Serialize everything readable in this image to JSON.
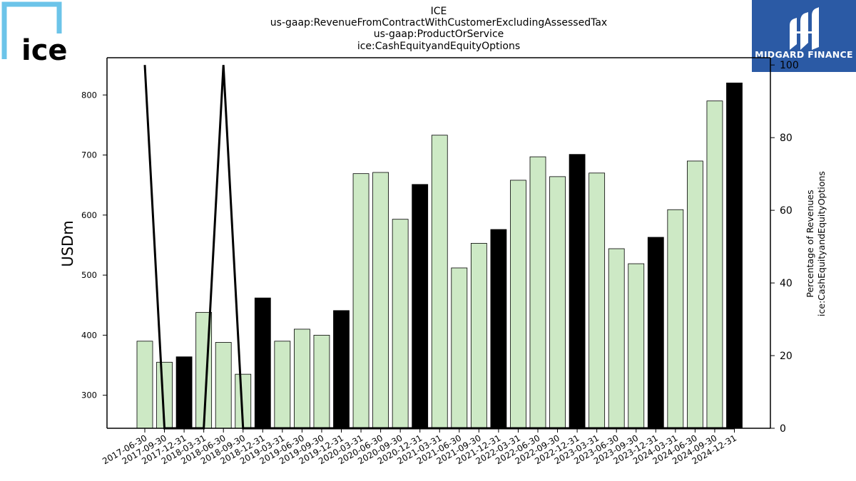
{
  "logo_left": {
    "text": "ice",
    "frame_color": "#6cc4e9"
  },
  "logo_right": {
    "text": "MIDGARD FINANCE",
    "bg_color": "#2b5aa5"
  },
  "chart_data": {
    "type": "bar",
    "title_lines": [
      "ICE",
      "us-gaap:RevenueFromContractWithCustomerExcludingAssessedTax",
      "us-gaap:ProductOrService",
      "ice:CashEquityandEquityOptions"
    ],
    "ylabel": "USDm",
    "y2label_lines": [
      "Percentage of Revenues",
      "ice:CashEquityandEquityOptions"
    ],
    "ylim": [
      245,
      862
    ],
    "yticks": [
      300,
      400,
      500,
      600,
      700,
      800
    ],
    "y2lim": [
      0,
      102
    ],
    "y2ticks": [
      0,
      20,
      40,
      60,
      80,
      100
    ],
    "categories": [
      "2017-06-30",
      "2017-09-30",
      "2017-12-31",
      "2018-03-31",
      "2018-06-30",
      "2018-09-30",
      "2018-12-31",
      "2019-03-31",
      "2019-06-30",
      "2019-09-30",
      "2019-12-31",
      "2020-03-31",
      "2020-06-30",
      "2020-09-30",
      "2020-12-31",
      "2021-03-31",
      "2021-06-30",
      "2021-09-30",
      "2021-12-31",
      "2022-03-31",
      "2022-06-30",
      "2022-09-30",
      "2022-12-31",
      "2023-03-31",
      "2023-06-30",
      "2023-09-30",
      "2023-12-31",
      "2024-03-31",
      "2024-06-30",
      "2024-09-30",
      "2024-12-31"
    ],
    "values": [
      390,
      355,
      364,
      438,
      388,
      335,
      462,
      390,
      410,
      400,
      441,
      669,
      671,
      593,
      651,
      733,
      512,
      553,
      576,
      658,
      697,
      664,
      701,
      670,
      544,
      519,
      563,
      609,
      690,
      790,
      820
    ],
    "year_end_flags": [
      false,
      false,
      true,
      false,
      false,
      false,
      true,
      false,
      false,
      false,
      true,
      false,
      false,
      false,
      true,
      false,
      false,
      false,
      true,
      false,
      false,
      false,
      true,
      false,
      false,
      false,
      true,
      false,
      false,
      false,
      true
    ],
    "colors": {
      "bar": "#cde9c5",
      "year_end_bar": "#000000",
      "line": "#000000"
    },
    "line_series": {
      "name": "Percentage of Revenues",
      "values": [
        100,
        0,
        0,
        0,
        100,
        0,
        0,
        0,
        0,
        0,
        0,
        0,
        0,
        0,
        0,
        0,
        0,
        0,
        0,
        0,
        0,
        0,
        0,
        0,
        0,
        0,
        0,
        0,
        0,
        0,
        0
      ]
    }
  }
}
